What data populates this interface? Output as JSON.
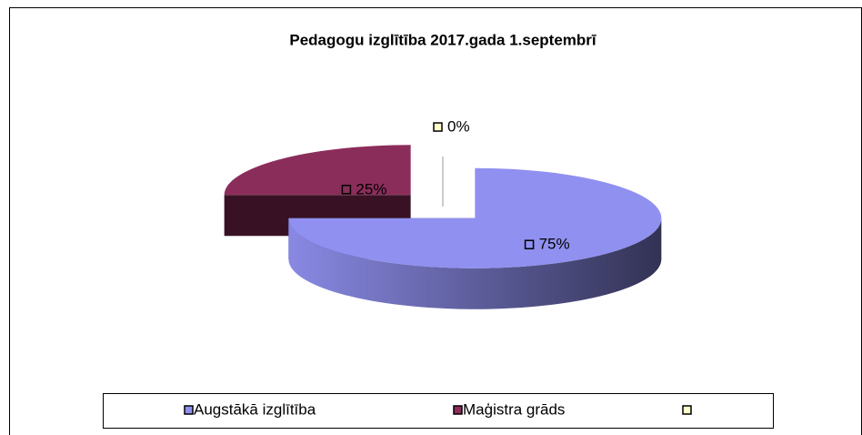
{
  "chart_data": {
    "type": "pie3d",
    "title": "Pedagogu izglītība 2017.gada 1.septembrī",
    "categories": [
      "Augstākā izglītība",
      "Maģistra grāds",
      null
    ],
    "values": [
      75,
      25,
      0
    ],
    "value_labels": [
      "75%",
      "25%",
      "0%"
    ],
    "colors": [
      "#9090f0",
      "#8b2d5a",
      "#ffffcc"
    ],
    "legend": "bottom"
  }
}
